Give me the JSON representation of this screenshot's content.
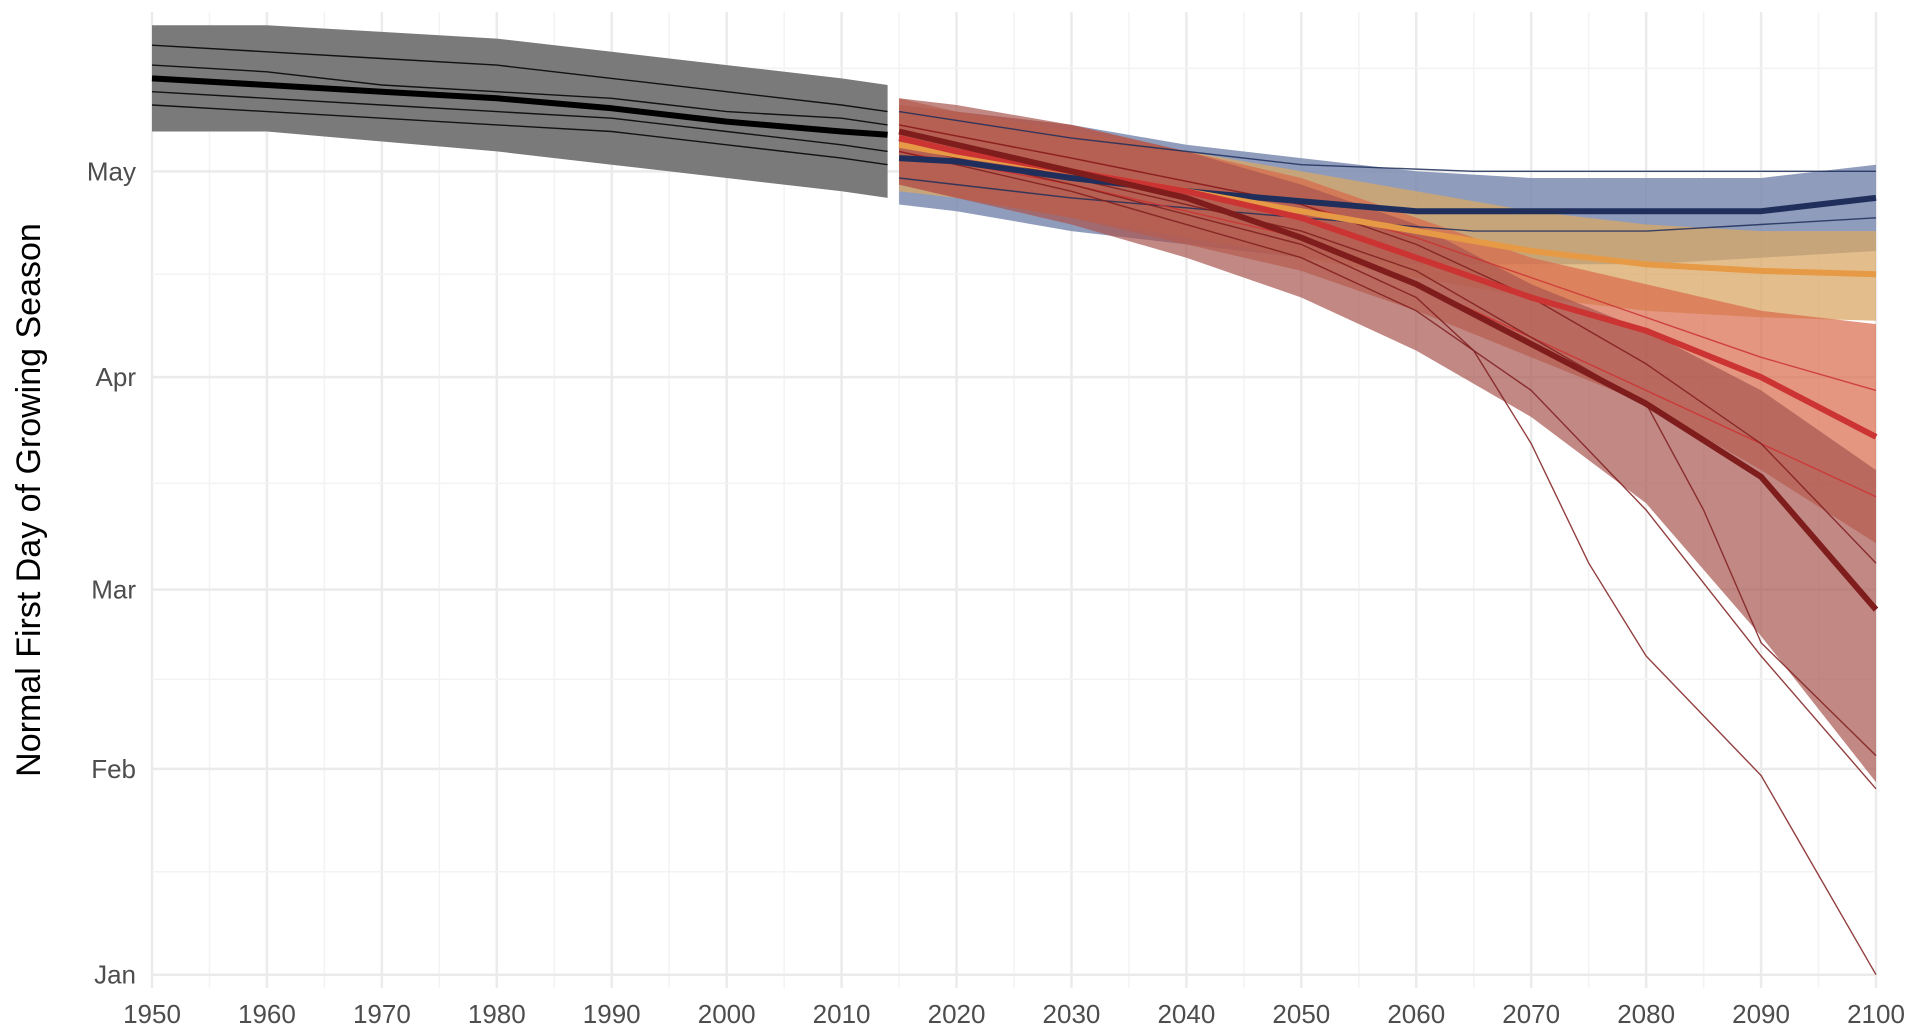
{
  "chart_data": {
    "type": "line",
    "title": "",
    "xlabel": "",
    "ylabel": "Normal First Day of Growing Season",
    "xlim": [
      1950,
      2100
    ],
    "x_ticks": [
      1950,
      1960,
      1970,
      1980,
      1990,
      2000,
      2010,
      2020,
      2030,
      2040,
      2050,
      2060,
      2070,
      2080,
      2090,
      2100
    ],
    "ylim": [
      -2,
      145
    ],
    "y_ticks": [
      {
        "value": 0,
        "label": "Jan"
      },
      {
        "value": 31,
        "label": "Feb"
      },
      {
        "value": 58,
        "label": "Mar"
      },
      {
        "value": 90,
        "label": "Apr"
      },
      {
        "value": 121,
        "label": "May"
      }
    ],
    "grid": true,
    "legend": "none",
    "colors": {
      "historical": "#000000",
      "historical_band": "#7a7a7a",
      "scenario_low": "#1f2e5a",
      "scenario_low_band": "#7d8bb0",
      "scenario_mid_low": "#e69a45",
      "scenario_mid_low_band": "#d9a866",
      "scenario_mid_high": "#cc3333",
      "scenario_mid_high_band": "#d96a4a",
      "scenario_high": "#7f1d1d",
      "scenario_high_band": "#a85550"
    },
    "series": [
      {
        "group": "historical",
        "x": [
          1950,
          1960,
          1970,
          1980,
          1990,
          2000,
          2010,
          2014
        ],
        "values": [
          135,
          134,
          133,
          132,
          130.5,
          128.5,
          127,
          126.5
        ],
        "band_upper": [
          143,
          143,
          142,
          141,
          139,
          137,
          135,
          134
        ],
        "band_lower": [
          127,
          127,
          125.5,
          124,
          122,
          120,
          118,
          117
        ]
      },
      {
        "group": "scenario_low",
        "x": [
          2015,
          2020,
          2030,
          2040,
          2050,
          2060,
          2070,
          2080,
          2090,
          2100
        ],
        "values": [
          123,
          122.5,
          120,
          118,
          116.5,
          115,
          115,
          115,
          115,
          117
        ],
        "band_upper": [
          131,
          130,
          128,
          125,
          123,
          121,
          120,
          120,
          120,
          122
        ],
        "band_lower": [
          116,
          115,
          112,
          110,
          108,
          107,
          107,
          107,
          108,
          109
        ]
      },
      {
        "group": "scenario_mid_low",
        "x": [
          2015,
          2020,
          2030,
          2040,
          2050,
          2060,
          2070,
          2080,
          2090,
          2100
        ],
        "values": [
          125,
          123.5,
          121,
          118,
          115,
          112,
          109,
          107,
          106,
          105.5
        ],
        "band_upper": [
          131,
          130,
          127,
          124,
          121,
          118,
          115,
          113,
          112,
          112
        ],
        "band_lower": [
          118,
          117,
          114,
          111,
          108,
          105,
          102,
          100,
          99,
          98.5
        ]
      },
      {
        "group": "scenario_mid_high",
        "x": [
          2015,
          2020,
          2030,
          2040,
          2050,
          2060,
          2070,
          2080,
          2090,
          2100
        ],
        "values": [
          126,
          124,
          121,
          118,
          114,
          108,
          102,
          97,
          90,
          81
        ],
        "band_upper": [
          132,
          130,
          128,
          124,
          120,
          114,
          108,
          104,
          100,
          98
        ],
        "band_lower": [
          119,
          117,
          114,
          110,
          106,
          100,
          93,
          86,
          76,
          65
        ]
      },
      {
        "group": "scenario_high",
        "x": [
          2015,
          2020,
          2030,
          2040,
          2050,
          2060,
          2070,
          2080,
          2090,
          2100
        ],
        "values": [
          127,
          125,
          121,
          117,
          111,
          104,
          95,
          86,
          75,
          55
        ],
        "band_upper": [
          132,
          131,
          128,
          124,
          119,
          113,
          104,
          97,
          88,
          76
        ],
        "band_lower": [
          119,
          117,
          113,
          108,
          102,
          94,
          84,
          71,
          51,
          29
        ]
      }
    ],
    "member_lines": [
      {
        "group": "historical",
        "x": [
          1950,
          1960,
          1970,
          1980,
          1990,
          2000,
          2010,
          2014
        ],
        "values": [
          140,
          139,
          138,
          137,
          135,
          133,
          131,
          130
        ]
      },
      {
        "group": "historical",
        "x": [
          1950,
          1960,
          1970,
          1980,
          1990,
          2000,
          2010,
          2014
        ],
        "values": [
          131,
          130,
          129,
          128,
          127,
          125,
          123,
          122
        ]
      },
      {
        "group": "historical",
        "x": [
          1950,
          1960,
          1970,
          1980,
          1990,
          2000,
          2010,
          2014
        ],
        "values": [
          137,
          136,
          134,
          133,
          132,
          130,
          129,
          128
        ]
      },
      {
        "group": "historical",
        "x": [
          1950,
          1960,
          1970,
          1980,
          1990,
          2000,
          2010,
          2014
        ],
        "values": [
          133,
          132,
          131,
          130,
          129,
          127,
          125,
          124
        ]
      },
      {
        "group": "scenario_low",
        "x": [
          2015,
          2030,
          2050,
          2065,
          2080,
          2090,
          2100
        ],
        "values": [
          130,
          126,
          122,
          121,
          121,
          121,
          121
        ]
      },
      {
        "group": "scenario_low",
        "x": [
          2015,
          2030,
          2050,
          2065,
          2080,
          2090,
          2100
        ],
        "values": [
          120,
          117,
          114,
          112,
          112,
          113,
          114
        ]
      },
      {
        "group": "scenario_mid_high",
        "x": [
          2015,
          2030,
          2050,
          2060,
          2070,
          2080,
          2090,
          2100
        ],
        "values": [
          124,
          119,
          111,
          104,
          96,
          88,
          80,
          72
        ]
      },
      {
        "group": "scenario_mid_high",
        "x": [
          2015,
          2030,
          2050,
          2060,
          2070,
          2080,
          2090,
          2100
        ],
        "values": [
          128,
          123,
          116,
          111,
          105,
          99,
          93,
          88
        ]
      },
      {
        "group": "scenario_high",
        "x": [
          2015,
          2030,
          2050,
          2060,
          2065,
          2070,
          2075,
          2080,
          2090,
          2100
        ],
        "values": [
          125,
          119,
          110,
          102,
          94,
          80,
          62,
          48,
          30,
          0
        ]
      },
      {
        "group": "scenario_high",
        "x": [
          2015,
          2030,
          2050,
          2060,
          2070,
          2080,
          2090,
          2100
        ],
        "values": [
          124,
          118,
          108,
          100,
          88,
          70,
          48,
          28
        ]
      },
      {
        "group": "scenario_high",
        "x": [
          2015,
          2030,
          2050,
          2060,
          2070,
          2080,
          2085,
          2090,
          2100
        ],
        "values": [
          126,
          120,
          112,
          106,
          96,
          86,
          70,
          50,
          33
        ]
      },
      {
        "group": "scenario_high",
        "x": [
          2015,
          2030,
          2050,
          2060,
          2070,
          2080,
          2090,
          2100
        ],
        "values": [
          128,
          123,
          116,
          110,
          102,
          92,
          80,
          62
        ]
      }
    ]
  }
}
